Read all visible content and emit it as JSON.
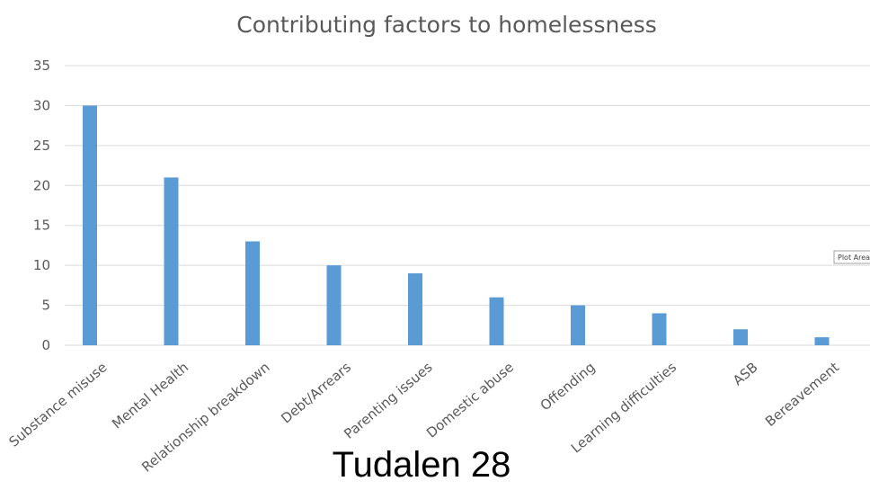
{
  "chart_data": {
    "type": "bar",
    "title": "Contributing factors to homelessness",
    "xlabel": "",
    "ylabel": "",
    "categories": [
      "Substance misuse",
      "Mental Health",
      "Relationship breakdown",
      "Debt/Arrears",
      "Parenting issues",
      "Domestic abuse",
      "Offending",
      "Learning difficulties",
      "ASB",
      "Bereavement"
    ],
    "values": [
      30,
      21,
      13,
      10,
      9,
      6,
      5,
      4,
      2,
      1
    ],
    "ylim": [
      0,
      35
    ],
    "yticks": [
      0,
      5,
      10,
      15,
      20,
      25,
      30,
      35
    ],
    "grid": true,
    "legend": "none",
    "bar_color": "#5b9bd5"
  },
  "tooltip": {
    "text": "Plot Area"
  },
  "footer": {
    "text": "Tudalen 28"
  }
}
